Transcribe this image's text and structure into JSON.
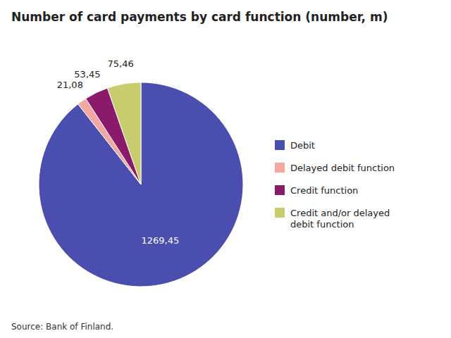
{
  "chart_data": {
    "type": "pie",
    "title": "Number of card payments by card function (number, m)",
    "categories": [
      "Debit",
      "Delayed debit function",
      "Credit function",
      "Credit and/or delayed\ndebit function"
    ],
    "values": [
      1269.45,
      21.08,
      53.45,
      75.46
    ],
    "value_labels": [
      "1269,45",
      "21,08",
      "53,45",
      "75,46"
    ],
    "colors": [
      "#4a4eae",
      "#f4a7a0",
      "#8b1a6b",
      "#c8cc6e"
    ],
    "data_labels": true,
    "legend": "right",
    "annotations": [
      "Source: Bank of Finland."
    ]
  }
}
